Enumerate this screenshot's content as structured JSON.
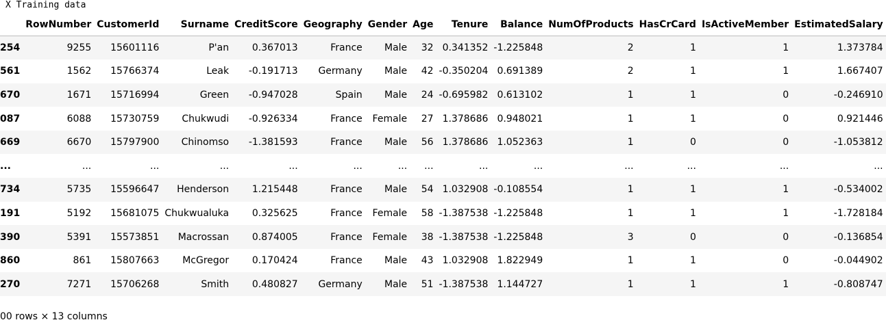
{
  "caption": "X Training data",
  "columns": [
    "RowNumber",
    "CustomerId",
    "Surname",
    "CreditScore",
    "Geography",
    "Gender",
    "Age",
    "Tenure",
    "Balance",
    "NumOfProducts",
    "HasCrCard",
    "IsActiveMember",
    "EstimatedSalary"
  ],
  "rows": [
    {
      "index": "254",
      "cells": [
        "9255",
        "15601116",
        "P'an",
        "0.367013",
        "France",
        "Male",
        "32",
        "0.341352",
        "-1.225848",
        "2",
        "1",
        "1",
        "1.373784"
      ]
    },
    {
      "index": "561",
      "cells": [
        "1562",
        "15766374",
        "Leak",
        "-0.191713",
        "Germany",
        "Male",
        "42",
        "-0.350204",
        "0.691389",
        "2",
        "1",
        "1",
        "1.667407"
      ]
    },
    {
      "index": "670",
      "cells": [
        "1671",
        "15716994",
        "Green",
        "-0.947028",
        "Spain",
        "Male",
        "24",
        "-0.695982",
        "0.613102",
        "1",
        "1",
        "0",
        "-0.246910"
      ]
    },
    {
      "index": "087",
      "cells": [
        "6088",
        "15730759",
        "Chukwudi",
        "-0.926334",
        "France",
        "Female",
        "27",
        "1.378686",
        "0.948021",
        "1",
        "1",
        "0",
        "0.921446"
      ]
    },
    {
      "index": "669",
      "cells": [
        "6670",
        "15797900",
        "Chinomso",
        "-1.381593",
        "France",
        "Male",
        "56",
        "1.378686",
        "1.052363",
        "1",
        "0",
        "0",
        "-1.053812"
      ]
    },
    {
      "index": "...",
      "cells": [
        "...",
        "...",
        "...",
        "...",
        "...",
        "...",
        "...",
        "...",
        "...",
        "...",
        "...",
        "...",
        "..."
      ]
    },
    {
      "index": "734",
      "cells": [
        "5735",
        "15596647",
        "Henderson",
        "1.215448",
        "France",
        "Male",
        "54",
        "1.032908",
        "-0.108554",
        "1",
        "1",
        "1",
        "-0.534002"
      ]
    },
    {
      "index": "191",
      "cells": [
        "5192",
        "15681075",
        "Chukwualuka",
        "0.325625",
        "France",
        "Female",
        "58",
        "-1.387538",
        "-1.225848",
        "1",
        "1",
        "1",
        "-1.728184"
      ]
    },
    {
      "index": "390",
      "cells": [
        "5391",
        "15573851",
        "Macrossan",
        "0.874005",
        "France",
        "Female",
        "38",
        "-1.387538",
        "-1.225848",
        "3",
        "0",
        "0",
        "-0.136854"
      ]
    },
    {
      "index": "860",
      "cells": [
        "861",
        "15807663",
        "McGregor",
        "0.170424",
        "France",
        "Male",
        "43",
        "1.032908",
        "1.822949",
        "1",
        "1",
        "0",
        "-0.044902"
      ]
    },
    {
      "index": "270",
      "cells": [
        "7271",
        "15706268",
        "Smith",
        "0.480827",
        "Germany",
        "Male",
        "51",
        "-1.387538",
        "1.144727",
        "1",
        "1",
        "1",
        "-0.808747"
      ]
    }
  ],
  "footer": "00 rows × 13 columns"
}
